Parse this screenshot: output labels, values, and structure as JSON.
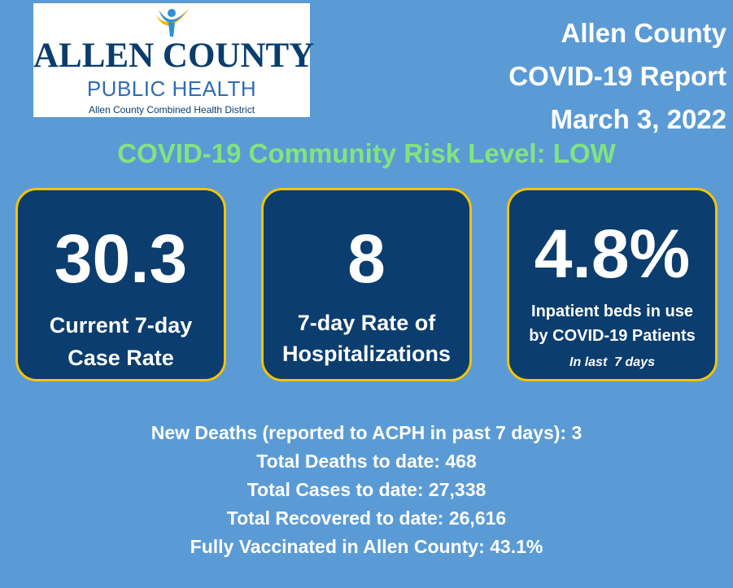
{
  "logo": {
    "line1": "ALLEN COUNTY",
    "line2": "PUBLIC HEALTH",
    "line3": "Allen County Combined Health District"
  },
  "header": {
    "line1": "Allen County",
    "line2": "COVID-19 Report",
    "line3": "March 3, 2022"
  },
  "risk_level": "COVID-19 Community Risk Level: LOW",
  "cards": [
    {
      "value": "30.3",
      "label_line1": "Current 7-day",
      "label_line2": "Case Rate"
    },
    {
      "value": "8",
      "label_line1": "7-day Rate of",
      "label_line2": "Hospitalizations"
    },
    {
      "value": "4.8%",
      "label_line1": "Inpatient beds in use",
      "label_line2": "by COVID-19 Patients",
      "note": "In last  7 days"
    }
  ],
  "stats": [
    "New Deaths (reported to ACPH in past 7 days): 3",
    "Total Deaths to date: 468",
    "Total Cases to date: 27,338",
    "Total Recovered to date: 26,616",
    "Fully Vaccinated in Allen County: 43.1%"
  ],
  "colors": {
    "background": "#5b9bd5",
    "card": "#0b3d6e",
    "card_border": "#f5c400",
    "risk_text": "#82e47e"
  }
}
